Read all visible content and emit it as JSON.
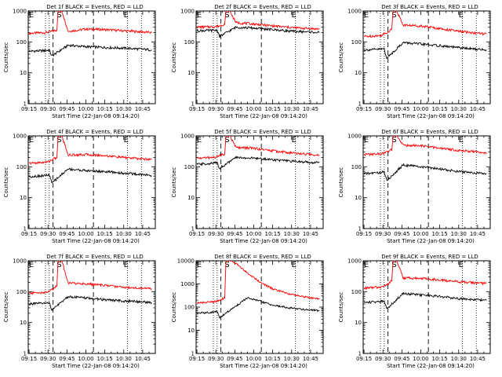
{
  "chart_data": [
    {
      "type": "line",
      "title": "Det 1f BLACK = Events, RED = LLD",
      "xlabel": "Start Time (22-Jan-08 09:14:20)",
      "ylabel": "Counts/sec",
      "xticks": [
        "09:15",
        "09:30",
        "09:45",
        "10:00",
        "10:15",
        "10:30",
        "10:45"
      ],
      "ylim": [
        1,
        1000
      ],
      "yscale": "log",
      "yticks": [
        "1",
        "10",
        "100",
        "1000"
      ],
      "markers": [
        {
          "label": "E",
          "x": "09:15"
        },
        {
          "label": "S",
          "x": "09:37"
        },
        {
          "label": "E",
          "x": "10:30"
        }
      ],
      "series": [
        {
          "color": "#ff0000",
          "x": [
            "09:15",
            "09:28",
            "09:31",
            "09:33",
            "09:37",
            "09:38",
            "09:41",
            "09:46",
            "10:00",
            "10:15",
            "10:30",
            "10:45",
            "10:52"
          ],
          "values": [
            190,
            200,
            210,
            220,
            240,
            1000,
            1000,
            220,
            260,
            250,
            230,
            210,
            200
          ]
        },
        {
          "color": "#000000",
          "x": [
            "09:15",
            "09:28",
            "09:31",
            "09:33",
            "09:46",
            "10:00",
            "10:15",
            "10:30",
            "10:45",
            "10:52"
          ],
          "values": [
            50,
            52,
            55,
            35,
            78,
            70,
            66,
            63,
            58,
            55
          ]
        }
      ]
    },
    {
      "type": "line",
      "title": "Det 2f BLACK = Events, RED = LLD",
      "xlabel": "Start Time (22-Jan-08 09:14:20)",
      "ylabel": "Counts/sec",
      "xticks": [
        "09:15",
        "09:30",
        "09:45",
        "10:00",
        "10:15",
        "10:30",
        "10:45"
      ],
      "ylim": [
        1,
        1000
      ],
      "yscale": "log",
      "yticks": [
        "1",
        "10",
        "100",
        "1000"
      ],
      "markers": [
        {
          "label": "E",
          "x": "09:15"
        },
        {
          "label": "S",
          "x": "09:37"
        },
        {
          "label": "E",
          "x": "10:30"
        }
      ],
      "series": [
        {
          "color": "#ff0000",
          "x": [
            "09:15",
            "09:28",
            "09:31",
            "09:33",
            "09:37",
            "09:38",
            "09:41",
            "09:46",
            "10:00",
            "10:15",
            "10:30",
            "10:45",
            "10:52"
          ],
          "values": [
            300,
            310,
            320,
            330,
            380,
            1000,
            1000,
            420,
            380,
            330,
            290,
            270,
            260
          ]
        },
        {
          "color": "#000000",
          "x": [
            "09:15",
            "09:28",
            "09:31",
            "09:33",
            "09:46",
            "10:00",
            "10:15",
            "10:30",
            "10:45",
            "10:52"
          ],
          "values": [
            230,
            235,
            240,
            150,
            300,
            280,
            250,
            220,
            210,
            200
          ]
        }
      ]
    },
    {
      "type": "line",
      "title": "Det 3f BLACK = Events, RED = LLD",
      "xlabel": "Start Time (22-Jan-08 09:14:20)",
      "ylabel": "Counts/sec",
      "xticks": [
        "09:15",
        "09:30",
        "09:45",
        "10:00",
        "10:15",
        "10:30",
        "10:45"
      ],
      "ylim": [
        1,
        1000
      ],
      "yscale": "log",
      "yticks": [
        "1",
        "10",
        "100",
        "1000"
      ],
      "markers": [
        {
          "label": "E",
          "x": "09:15"
        },
        {
          "label": "S",
          "x": "09:37"
        },
        {
          "label": "E",
          "x": "10:30"
        }
      ],
      "series": [
        {
          "color": "#ff0000",
          "x": [
            "09:15",
            "09:28",
            "09:31",
            "09:33",
            "09:37",
            "09:38",
            "09:41",
            "09:46",
            "10:00",
            "10:15",
            "10:30",
            "10:45",
            "10:52"
          ],
          "values": [
            150,
            160,
            180,
            200,
            260,
            1000,
            1000,
            350,
            330,
            270,
            220,
            190,
            180
          ]
        },
        {
          "color": "#000000",
          "x": [
            "09:15",
            "09:28",
            "09:31",
            "09:33",
            "09:46",
            "10:00",
            "10:15",
            "10:30",
            "10:45",
            "10:52"
          ],
          "values": [
            55,
            58,
            60,
            30,
            95,
            85,
            75,
            65,
            58,
            55
          ]
        }
      ]
    },
    {
      "type": "line",
      "title": "Det 4f BLACK = Events, RED = LLD",
      "xlabel": "Start Time (22-Jan-08 09:14:20)",
      "ylabel": "Counts/sec",
      "xticks": [
        "09:15",
        "09:30",
        "09:45",
        "10:00",
        "10:15",
        "10:30",
        "10:45"
      ],
      "ylim": [
        1,
        1000
      ],
      "yscale": "log",
      "yticks": [
        "1",
        "10",
        "100",
        "1000"
      ],
      "markers": [
        {
          "label": "E",
          "x": "09:15"
        },
        {
          "label": "S",
          "x": "09:37"
        },
        {
          "label": "E",
          "x": "10:30"
        }
      ],
      "series": [
        {
          "color": "#ff0000",
          "x": [
            "09:15",
            "09:28",
            "09:31",
            "09:33",
            "09:37",
            "09:38",
            "09:41",
            "09:46",
            "10:00",
            "10:15",
            "10:30",
            "10:45",
            "10:52"
          ],
          "values": [
            130,
            140,
            150,
            170,
            200,
            1000,
            1000,
            240,
            250,
            230,
            200,
            180,
            170
          ]
        },
        {
          "color": "#000000",
          "x": [
            "09:15",
            "09:28",
            "09:31",
            "09:33",
            "09:46",
            "10:00",
            "10:15",
            "10:30",
            "10:45",
            "10:52"
          ],
          "values": [
            48,
            52,
            55,
            30,
            85,
            75,
            70,
            62,
            56,
            52
          ]
        }
      ]
    },
    {
      "type": "line",
      "title": "Det 5f BLACK = Events, RED = LLD",
      "xlabel": "Start Time (22-Jan-08 09:14:20)",
      "ylabel": "Counts/sec",
      "xticks": [
        "09:15",
        "09:30",
        "09:45",
        "10:00",
        "10:15",
        "10:30",
        "10:45"
      ],
      "ylim": [
        1,
        1000
      ],
      "yscale": "log",
      "yticks": [
        "1",
        "10",
        "100",
        "1000"
      ],
      "markers": [
        {
          "label": "E",
          "x": "09:15"
        },
        {
          "label": "S",
          "x": "09:37"
        },
        {
          "label": "E",
          "x": "10:30"
        }
      ],
      "series": [
        {
          "color": "#ff0000",
          "x": [
            "09:15",
            "09:28",
            "09:31",
            "09:33",
            "09:37",
            "09:38",
            "09:41",
            "09:46",
            "10:00",
            "10:15",
            "10:30",
            "10:45",
            "10:52"
          ],
          "values": [
            190,
            200,
            210,
            230,
            260,
            1000,
            1000,
            420,
            400,
            330,
            280,
            250,
            240
          ]
        },
        {
          "color": "#000000",
          "x": [
            "09:15",
            "09:28",
            "09:31",
            "09:33",
            "09:46",
            "10:00",
            "10:15",
            "10:30",
            "10:45",
            "10:52"
          ],
          "values": [
            120,
            130,
            140,
            90,
            200,
            190,
            170,
            150,
            140,
            135
          ]
        }
      ]
    },
    {
      "type": "line",
      "title": "Det 6f BLACK = Events, RED = LLD",
      "xlabel": "Start Time (22-Jan-08 09:14:20)",
      "ylabel": "Counts/sec",
      "xticks": [
        "09:15",
        "09:30",
        "09:45",
        "10:00",
        "10:15",
        "10:30",
        "10:45"
      ],
      "ylim": [
        1,
        1000
      ],
      "yscale": "log",
      "yticks": [
        "1",
        "10",
        "100",
        "1000"
      ],
      "markers": [
        {
          "label": "E",
          "x": "09:15"
        },
        {
          "label": "S",
          "x": "09:37"
        },
        {
          "label": "E",
          "x": "10:30"
        }
      ],
      "series": [
        {
          "color": "#ff0000",
          "x": [
            "09:15",
            "09:28",
            "09:31",
            "09:33",
            "09:37",
            "09:38",
            "09:41",
            "09:46",
            "10:00",
            "10:15",
            "10:30",
            "10:45",
            "10:52"
          ],
          "values": [
            250,
            260,
            280,
            300,
            350,
            1000,
            1000,
            500,
            480,
            400,
            340,
            300,
            290
          ]
        },
        {
          "color": "#000000",
          "x": [
            "09:15",
            "09:28",
            "09:31",
            "09:33",
            "09:46",
            "10:00",
            "10:15",
            "10:30",
            "10:45",
            "10:52"
          ],
          "values": [
            60,
            65,
            70,
            35,
            115,
            100,
            85,
            70,
            62,
            58
          ]
        }
      ]
    },
    {
      "type": "line",
      "title": "Det 7f BLACK = Events, RED = LLD",
      "xlabel": "Start Time (22-Jan-08 09:14:20)",
      "ylabel": "Counts/sec",
      "xticks": [
        "09:15",
        "09:30",
        "09:45",
        "10:00",
        "10:15",
        "10:30",
        "10:45"
      ],
      "ylim": [
        1,
        1000
      ],
      "yscale": "log",
      "yticks": [
        "1",
        "10",
        "100",
        "1000"
      ],
      "markers": [
        {
          "label": "E",
          "x": "09:15"
        },
        {
          "label": "S",
          "x": "09:37"
        },
        {
          "label": "E",
          "x": "10:30"
        }
      ],
      "series": [
        {
          "color": "#ff0000",
          "x": [
            "09:15",
            "09:28",
            "09:31",
            "09:33",
            "09:37",
            "09:38",
            "09:41",
            "09:46",
            "10:00",
            "10:15",
            "10:30",
            "10:45",
            "10:52"
          ],
          "values": [
            90,
            95,
            100,
            120,
            150,
            1000,
            1000,
            190,
            180,
            160,
            140,
            130,
            125
          ]
        },
        {
          "color": "#000000",
          "x": [
            "09:15",
            "09:28",
            "09:31",
            "09:33",
            "09:46",
            "10:00",
            "10:15",
            "10:30",
            "10:45",
            "10:52"
          ],
          "values": [
            40,
            42,
            45,
            25,
            70,
            62,
            55,
            50,
            47,
            45
          ]
        }
      ]
    },
    {
      "type": "line",
      "title": "Det 8f BLACK = Events, RED = LLD",
      "xlabel": "Start Time (22-Jan-08 09:14:20)",
      "ylabel": "Counts/sec",
      "xticks": [
        "09:15",
        "09:30",
        "09:45",
        "10:00",
        "10:15",
        "10:30",
        "10:45"
      ],
      "ylim": [
        1,
        10000
      ],
      "yscale": "log",
      "yticks": [
        "1",
        "10",
        "100",
        "1000",
        "10000"
      ],
      "markers": [
        {
          "label": "E",
          "x": "09:15"
        },
        {
          "label": "S",
          "x": "09:37"
        },
        {
          "label": "E",
          "x": "10:30"
        }
      ],
      "series": [
        {
          "color": "#ff0000",
          "x": [
            "09:15",
            "09:28",
            "09:31",
            "09:33",
            "09:37",
            "09:38",
            "09:41",
            "09:46",
            "09:55",
            "10:05",
            "10:15",
            "10:30",
            "10:45",
            "10:52"
          ],
          "values": [
            150,
            170,
            180,
            200,
            250,
            10000,
            10000,
            8000,
            3000,
            1200,
            600,
            350,
            250,
            230
          ]
        },
        {
          "color": "#000000",
          "x": [
            "09:15",
            "09:28",
            "09:31",
            "09:33",
            "09:55",
            "10:05",
            "10:15",
            "10:30",
            "10:45",
            "10:52"
          ],
          "values": [
            55,
            60,
            65,
            35,
            250,
            180,
            120,
            90,
            75,
            70
          ]
        }
      ]
    },
    {
      "type": "line",
      "title": "Det 9f BLACK = Events, RED = LLD",
      "xlabel": "Start Time (22-Jan-08 09:14:20)",
      "ylabel": "Counts/sec",
      "xticks": [
        "09:15",
        "09:30",
        "09:45",
        "10:00",
        "10:15",
        "10:30",
        "10:45"
      ],
      "ylim": [
        1,
        1000
      ],
      "yscale": "log",
      "yticks": [
        "1",
        "10",
        "100",
        "1000"
      ],
      "markers": [
        {
          "label": "E",
          "x": "09:15"
        },
        {
          "label": "S",
          "x": "09:37"
        },
        {
          "label": "E",
          "x": "10:30"
        }
      ],
      "series": [
        {
          "color": "#ff0000",
          "x": [
            "09:15",
            "09:28",
            "09:31",
            "09:33",
            "09:37",
            "09:38",
            "09:41",
            "09:46",
            "10:00",
            "10:15",
            "10:30",
            "10:45",
            "10:52"
          ],
          "values": [
            130,
            140,
            150,
            170,
            220,
            1000,
            1000,
            280,
            270,
            240,
            210,
            190,
            185
          ]
        },
        {
          "color": "#000000",
          "x": [
            "09:15",
            "09:28",
            "09:31",
            "09:33",
            "09:46",
            "10:00",
            "10:15",
            "10:30",
            "10:45",
            "10:52"
          ],
          "values": [
            45,
            48,
            52,
            28,
            88,
            78,
            70,
            60,
            55,
            52
          ]
        }
      ]
    }
  ]
}
